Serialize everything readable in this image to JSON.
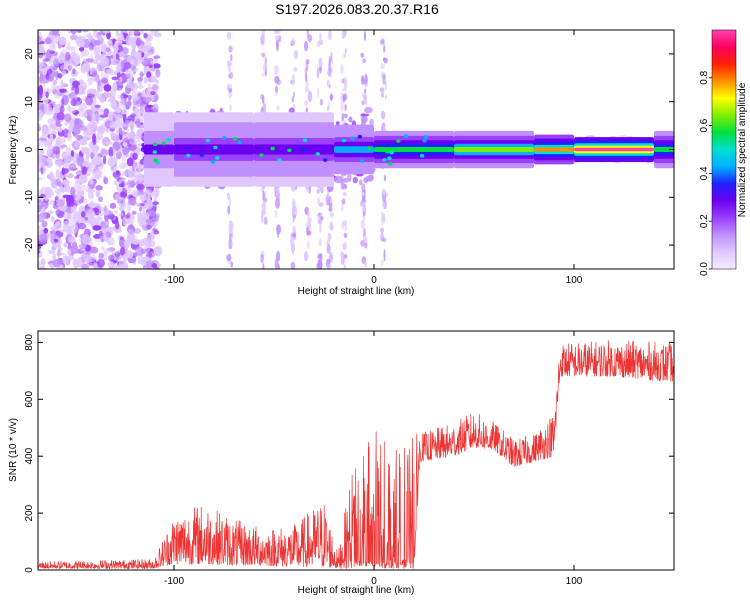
{
  "title": "S197.2026.083.20.37.R16",
  "chart_data": [
    {
      "type": "heatmap",
      "name": "spectrogram",
      "xlabel": "Height of straight line (km)",
      "ylabel": "Frequency (Hz)",
      "xlim": [
        -168,
        150
      ],
      "ylim": [
        -25,
        25
      ],
      "xticks": [
        -100,
        0,
        100
      ],
      "xtick_labels": [
        "-100",
        "0",
        "100"
      ],
      "yticks": [
        -20,
        -10,
        0,
        10,
        20
      ],
      "ytick_labels": [
        "-20",
        "-10",
        "0",
        "10",
        "20"
      ],
      "colorbar": {
        "label": "Normalized spectral amplitude",
        "range": [
          0,
          1
        ],
        "ticks": [
          0.0,
          0.2,
          0.4,
          0.6,
          0.8
        ],
        "tick_labels": [
          "0.0",
          "0.2",
          "0.4",
          "0.6",
          "0.8"
        ],
        "colors": [
          "#f4ecff",
          "#e0c8ff",
          "#c090ff",
          "#9a40ff",
          "#6a00f0",
          "#2020ff",
          "#00b0ff",
          "#00e0d0",
          "#00e040",
          "#80f000",
          "#ffff00",
          "#ff9000",
          "#ff2000",
          "#ff0060",
          "#ff40b0"
        ]
      },
      "line_segments": [
        {
          "x0": -115,
          "x1": -100,
          "amp": 0.25,
          "width": 3
        },
        {
          "x0": -100,
          "x1": -60,
          "amp": 0.3,
          "width": 3
        },
        {
          "x0": -60,
          "x1": -20,
          "amp": 0.32,
          "width": 3
        },
        {
          "x0": -20,
          "x1": 0,
          "amp": 0.42,
          "width": 2
        },
        {
          "x0": 0,
          "x1": 40,
          "amp": 0.55,
          "width": 1.5
        },
        {
          "x0": 40,
          "x1": 80,
          "amp": 0.62,
          "width": 1.5
        },
        {
          "x0": 80,
          "x1": 100,
          "amp": 0.75,
          "width": 1.2
        },
        {
          "x0": 100,
          "x1": 140,
          "amp": 0.98,
          "width": 1.0
        },
        {
          "x0": 140,
          "x1": 150,
          "amp": 0.55,
          "width": 1.5
        }
      ],
      "vertical_streaks": [
        -72,
        -55,
        -48,
        -40,
        -33,
        -27,
        -22,
        -15,
        -5,
        5
      ]
    },
    {
      "type": "line",
      "name": "snr",
      "xlabel": "Height of straight line (km)",
      "ylabel": "SNR (10 * v/v)",
      "xlim": [
        -168,
        150
      ],
      "ylim": [
        0,
        840
      ],
      "xticks": [
        -100,
        0,
        100
      ],
      "xtick_labels": [
        "-100",
        "0",
        "100"
      ],
      "yticks": [
        0,
        200,
        400,
        600,
        800
      ],
      "ytick_labels": [
        "0",
        "200",
        "400",
        "600",
        "800"
      ],
      "color": "#ee3333",
      "envelope": [
        {
          "x": -168,
          "low": 5,
          "high": 30
        },
        {
          "x": -110,
          "low": 5,
          "high": 40
        },
        {
          "x": -100,
          "low": 20,
          "high": 200
        },
        {
          "x": -85,
          "low": 20,
          "high": 240
        },
        {
          "x": -70,
          "low": 15,
          "high": 180
        },
        {
          "x": -55,
          "low": 15,
          "high": 150
        },
        {
          "x": -40,
          "low": 10,
          "high": 160
        },
        {
          "x": -25,
          "low": 10,
          "high": 250
        },
        {
          "x": -18,
          "low": 5,
          "high": 60
        },
        {
          "x": -10,
          "low": 5,
          "high": 400
        },
        {
          "x": 0,
          "low": 5,
          "high": 500
        },
        {
          "x": 10,
          "low": 5,
          "high": 420
        },
        {
          "x": 20,
          "low": 5,
          "high": 500
        },
        {
          "x": 23,
          "low": 380,
          "high": 480
        },
        {
          "x": 40,
          "low": 400,
          "high": 520
        },
        {
          "x": 50,
          "low": 430,
          "high": 560
        },
        {
          "x": 60,
          "low": 420,
          "high": 520
        },
        {
          "x": 70,
          "low": 360,
          "high": 460
        },
        {
          "x": 80,
          "low": 380,
          "high": 480
        },
        {
          "x": 90,
          "low": 400,
          "high": 560
        },
        {
          "x": 93,
          "low": 680,
          "high": 800
        },
        {
          "x": 120,
          "low": 680,
          "high": 810
        },
        {
          "x": 150,
          "low": 660,
          "high": 800
        }
      ]
    }
  ]
}
